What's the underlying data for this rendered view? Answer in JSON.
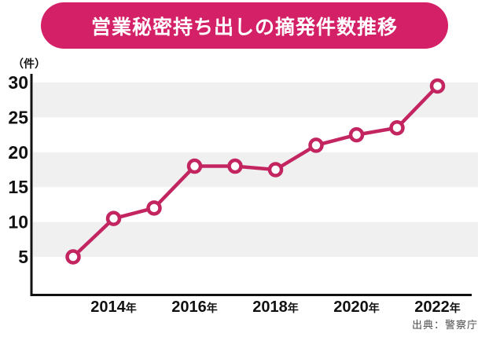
{
  "page": {
    "background": "#ffffff"
  },
  "header": {
    "title": "営業秘密持ち出しの摘発件数推移",
    "banner_color": "#d42067",
    "title_color": "#ffffff"
  },
  "chart": {
    "unit_label": "（件）",
    "source": "出典：警察庁"
  },
  "chart_data": {
    "type": "line",
    "title": "営業秘密持ち出しの摘発件数推移",
    "x": [
      2013,
      2014,
      2015,
      2016,
      2017,
      2018,
      2019,
      2020,
      2021,
      2022
    ],
    "values": [
      5,
      10.5,
      12,
      18,
      18,
      17.5,
      21,
      22.5,
      23.5,
      29.5
    ],
    "x_ticks": [
      2014,
      2016,
      2018,
      2020,
      2022
    ],
    "x_tick_labels": [
      "2014年",
      "2016年",
      "2018年",
      "2020年",
      "2022年"
    ],
    "y_ticks": [
      5,
      10,
      15,
      20,
      25,
      30
    ],
    "ylim": [
      0,
      32
    ],
    "ylabel": "（件）",
    "xlabel": "",
    "legend": null,
    "grid": "alternating horizontal stripe bands",
    "striped_bands": [
      [
        5,
        10
      ],
      [
        15,
        20
      ],
      [
        25,
        30
      ]
    ],
    "stripe_color": "#f0f0f0",
    "line_color": "#c32561",
    "marker_style": "open-circle",
    "marker_fill": "#ffffff",
    "axis_color": "#111111",
    "source": "出典：警察庁"
  }
}
